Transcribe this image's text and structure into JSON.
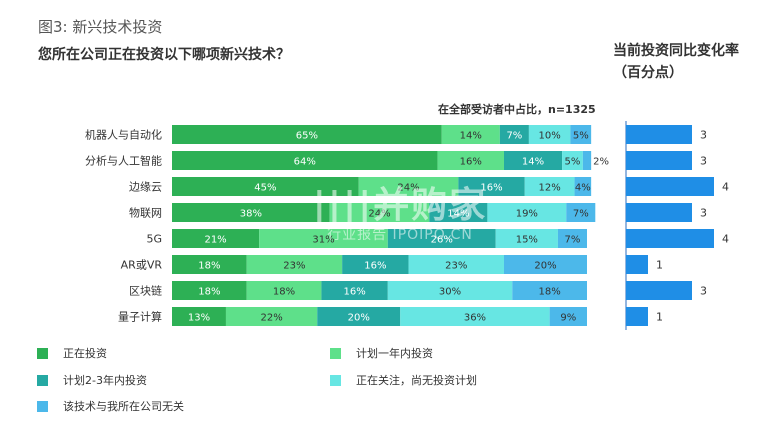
{
  "header": {
    "figure_label": "图3:  新兴技术投资",
    "question": "您所在公司正在投资以下哪项新兴技术？",
    "right_title_line1": "当前投资同比变化率",
    "right_title_line2": "（百分点）",
    "base_note": "在全部受访者中占比，n=1325"
  },
  "watermark": {
    "line1": "||||并购家",
    "line2": "行业报告 IPOIPO.CN"
  },
  "chart_data": [
    {
      "type": "bar",
      "orientation": "horizontal",
      "stacked": true,
      "unit": "%",
      "categories": [
        "机器人与自动化",
        "分析与人工智能",
        "边缘云",
        "物联网",
        "5G",
        "AR或VR",
        "区块链",
        "量子计算"
      ],
      "series": [
        {
          "name": "正在投资",
          "color": "#2db055",
          "values": [
            65,
            64,
            45,
            38,
            21,
            18,
            18,
            13
          ]
        },
        {
          "name": "计划一年内投资",
          "color": "#5ee08a",
          "values": [
            14,
            16,
            24,
            24,
            31,
            23,
            18,
            22
          ]
        },
        {
          "name": "计划2-3年内投资",
          "color": "#25a9a3",
          "values": [
            7,
            14,
            16,
            14,
            26,
            16,
            16,
            20
          ]
        },
        {
          "name": "正在关注，尚无投资计划",
          "color": "#67e6e3",
          "values": [
            10,
            5,
            12,
            19,
            15,
            23,
            30,
            36
          ]
        },
        {
          "name": "该技术与我所在公司无关",
          "color": "#4cb8ea",
          "values": [
            5,
            2,
            4,
            7,
            7,
            20,
            18,
            9
          ]
        }
      ],
      "labels": [
        [
          "65%",
          "14%",
          "7%",
          "10%",
          "5%"
        ],
        [
          "64%",
          "16%",
          "14%",
          "5%",
          "2%"
        ],
        [
          "45%",
          "24%",
          "16%",
          "12%",
          "4%"
        ],
        [
          "38%",
          "24%",
          "14%",
          "19%",
          "7%"
        ],
        [
          "21%",
          "31%",
          "26%",
          "15%",
          "7%"
        ],
        [
          "18%",
          "23%",
          "16%",
          "23%",
          "20%"
        ],
        [
          "18%",
          "18%",
          "16%",
          "30%",
          "18%"
        ],
        [
          "13%",
          "22%",
          "20%",
          "36%",
          "9%"
        ]
      ],
      "legend_position": "bottom"
    },
    {
      "type": "bar",
      "orientation": "horizontal",
      "title": "当前投资同比变化率（百分点）",
      "categories": [
        "机器人与自动化",
        "分析与人工智能",
        "边缘云",
        "物联网",
        "5G",
        "AR或VR",
        "区块链",
        "量子计算"
      ],
      "values": [
        3,
        3,
        4,
        3,
        4,
        1,
        3,
        1
      ],
      "color": "#1f8ee6"
    }
  ]
}
